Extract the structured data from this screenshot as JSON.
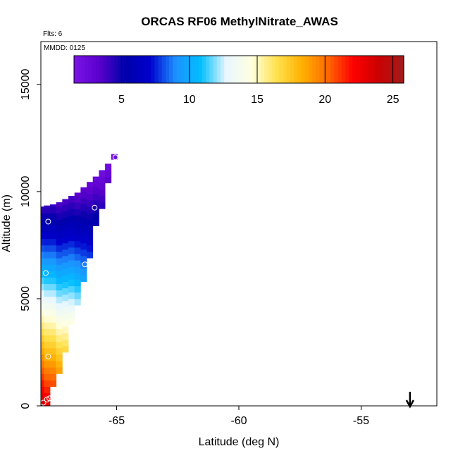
{
  "chart_data": {
    "type": "heatmap",
    "title": "ORCAS RF06 MethylNitrate_AWAS",
    "subtitle": "Flts: 6",
    "annotation": "MMDD: 0125",
    "xlabel": "Latitude (deg N)",
    "ylabel": "Altitude (m)",
    "xlim": [
      -68.1,
      -51.9
    ],
    "ylim": [
      0,
      17000
    ],
    "xticks": [
      -65,
      -60,
      -55
    ],
    "xtick_labels": [
      "-65",
      "-60",
      "-55"
    ],
    "yticks": [
      0,
      5000,
      10000,
      15000
    ],
    "ytick_labels": [
      "0",
      "5000",
      "10000",
      "15000"
    ],
    "colorbar": {
      "range": [
        1.5,
        25.8
      ],
      "ticks": [
        5,
        10,
        15,
        20,
        25
      ],
      "tick_labels": [
        "5",
        "10",
        "15",
        "20",
        "25"
      ],
      "stops": [
        "#7a14e6",
        "#5a00cc",
        "#0000aa",
        "#0000cd",
        "#1e90ff",
        "#00bfff",
        "#e8f6ff",
        "#ffffe0",
        "#ffe14d",
        "#ffb000",
        "#ff6a00",
        "#ff0000",
        "#cc0000",
        "#a01c1c"
      ]
    },
    "columns": [
      {
        "lat": -68.05,
        "alt_min": 0,
        "alt_max": 9300,
        "value_bottom": 24,
        "value_top": 4
      },
      {
        "lat": -67.85,
        "alt_min": 0,
        "alt_max": 9350,
        "value_bottom": 23,
        "value_top": 4
      },
      {
        "lat": -67.6,
        "alt_min": 900,
        "alt_max": 9400,
        "value_bottom": 21,
        "value_top": 4
      },
      {
        "lat": -67.35,
        "alt_min": 1500,
        "alt_max": 9500,
        "value_bottom": 19,
        "value_top": 3.5
      },
      {
        "lat": -67.1,
        "alt_min": 2500,
        "alt_max": 9650,
        "value_bottom": 17,
        "value_top": 3.5
      },
      {
        "lat": -66.85,
        "alt_min": 3800,
        "alt_max": 9800,
        "value_bottom": 14.5,
        "value_top": 3.5
      },
      {
        "lat": -66.6,
        "alt_min": 4700,
        "alt_max": 9950,
        "value_bottom": 12.5,
        "value_top": 3
      },
      {
        "lat": -66.35,
        "alt_min": 5800,
        "alt_max": 10200,
        "value_bottom": 10,
        "value_top": 3
      },
      {
        "lat": -66.1,
        "alt_min": 6900,
        "alt_max": 10450,
        "value_bottom": 8,
        "value_top": 2.5
      },
      {
        "lat": -65.85,
        "alt_min": 8400,
        "alt_max": 10700,
        "value_bottom": 6,
        "value_top": 2.5
      },
      {
        "lat": -65.6,
        "alt_min": 9200,
        "alt_max": 11000,
        "value_bottom": 4.5,
        "value_top": 2
      },
      {
        "lat": -65.35,
        "alt_min": 10400,
        "alt_max": 11300,
        "value_bottom": 3.5,
        "value_top": 2
      },
      {
        "lat": -65.1,
        "alt_min": 11500,
        "alt_max": 11750,
        "value_bottom": 2,
        "value_top": 2
      }
    ],
    "sample_points": [
      {
        "lat": -68.0,
        "alt": 150
      },
      {
        "lat": -67.85,
        "alt": 300
      },
      {
        "lat": -67.75,
        "alt": 350
      },
      {
        "lat": -67.8,
        "alt": 2300
      },
      {
        "lat": -67.9,
        "alt": 6200
      },
      {
        "lat": -67.8,
        "alt": 8600
      },
      {
        "lat": -66.3,
        "alt": 6600
      },
      {
        "lat": -65.9,
        "alt": 9250
      },
      {
        "lat": -65.05,
        "alt": 11600
      }
    ],
    "arrow_marker": {
      "lat": -53.0
    }
  }
}
